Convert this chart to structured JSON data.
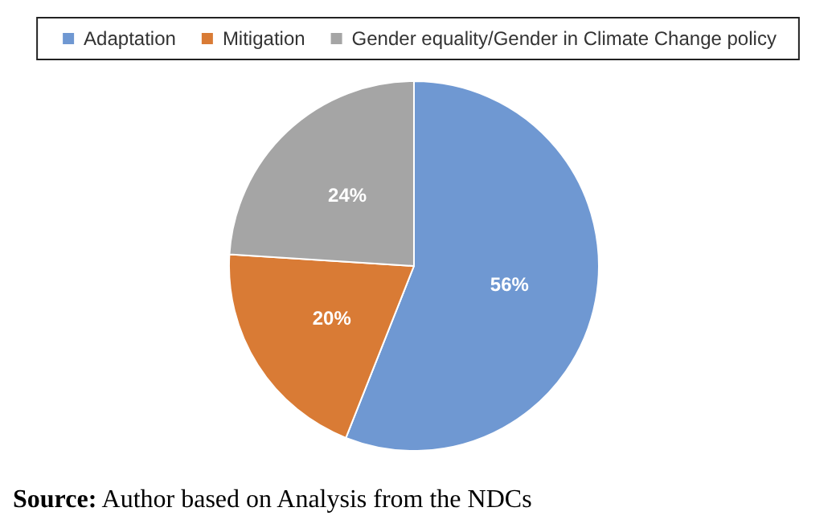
{
  "chart_data": {
    "type": "pie",
    "categories": [
      "Adaptation",
      "Mitigation",
      "Gender equality/Gender in Climate Change policy"
    ],
    "values": [
      56,
      20,
      24
    ],
    "colors": [
      "#6f98d2",
      "#d97b35",
      "#a5a5a5"
    ],
    "value_labels": [
      "56%",
      "20%",
      "24%"
    ],
    "legend": "top",
    "annotations": [
      "Source: Author based on Analysis from the NDCs"
    ]
  }
}
